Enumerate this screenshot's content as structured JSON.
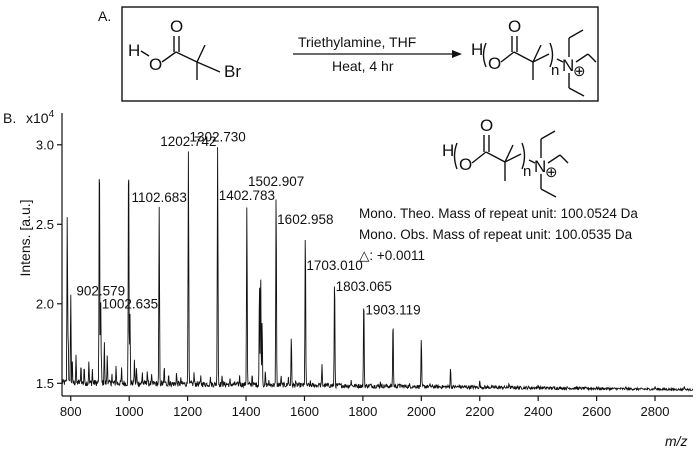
{
  "panel_a": {
    "label": "A.",
    "reagents": "Triethylamine, THF",
    "conditions": "Heat, 4 hr",
    "reactant_atoms": {
      "h": "H",
      "o1": "O",
      "o2": "O",
      "br": "Br"
    },
    "product_atoms": {
      "h": "H",
      "o1": "O",
      "o2": "O",
      "n": "N",
      "sub_n": "n",
      "charge": "⊕"
    }
  },
  "panel_b": {
    "label": "B.",
    "structure_atoms": {
      "h": "H",
      "o1": "O",
      "o2": "O",
      "n": "N",
      "sub_n": "n",
      "charge": "⊕"
    },
    "info_lines": [
      "Mono. Theo. Mass of repeat unit: 100.0524 Da",
      "Mono. Obs. Mass of repeat unit: 100.0535 Da",
      "△: +0.0011"
    ]
  },
  "chart_data": {
    "type": "line",
    "xlabel": "m/z",
    "ylabel": "Intens. [a.u.]",
    "y_multiplier": "x10",
    "y_multiplier_exp": "4",
    "xlim": [
      770,
      2930
    ],
    "ylim": [
      1.42,
      3.2
    ],
    "x_ticks": [
      800,
      1000,
      1200,
      1400,
      1600,
      1800,
      2000,
      2200,
      2400,
      2600,
      2800
    ],
    "x_tick_labels": [
      "800",
      "1000",
      "1200",
      "1400",
      "1600",
      "1800",
      "2000",
      "2200",
      "2400",
      "2600",
      "2800"
    ],
    "y_ticks": [
      1.5,
      2.0,
      2.5,
      3.0
    ],
    "y_tick_labels": [
      "1.5",
      "2.0",
      "2.5",
      "3.0"
    ],
    "baseline": 1.46,
    "peaks": [
      [
        788,
        2.56
      ],
      [
        791,
        1.83
      ],
      [
        800,
        2.06
      ],
      [
        805,
        1.66
      ],
      [
        818,
        1.68
      ],
      [
        835,
        1.62
      ],
      [
        846,
        1.61
      ],
      [
        862,
        1.64
      ],
      [
        874,
        1.59
      ],
      [
        898,
        3.0
      ],
      [
        902.579,
        2.02
      ],
      [
        905,
        1.62
      ],
      [
        915,
        1.76
      ],
      [
        925,
        1.68
      ],
      [
        941,
        1.56
      ],
      [
        955,
        1.61
      ],
      [
        974,
        1.6
      ],
      [
        998,
        3.0
      ],
      [
        1002.635,
        1.94
      ],
      [
        1018,
        1.65
      ],
      [
        1025,
        1.6
      ],
      [
        1045,
        1.57
      ],
      [
        1062,
        1.58
      ],
      [
        1077,
        1.56
      ],
      [
        1102.683,
        2.61
      ],
      [
        1120,
        1.61
      ],
      [
        1135,
        1.56
      ],
      [
        1162,
        1.57
      ],
      [
        1177,
        1.54
      ],
      [
        1202.742,
        2.96
      ],
      [
        1222,
        1.57
      ],
      [
        1245,
        1.55
      ],
      [
        1278,
        1.54
      ],
      [
        1302.73,
        2.99
      ],
      [
        1318,
        1.55
      ],
      [
        1345,
        1.53
      ],
      [
        1378,
        1.55
      ],
      [
        1402.783,
        2.62
      ],
      [
        1421,
        1.56
      ],
      [
        1446,
        2.14
      ],
      [
        1450,
        2.22
      ],
      [
        1455,
        1.9
      ],
      [
        1466,
        1.58
      ],
      [
        1478,
        1.52
      ],
      [
        1502.907,
        2.71
      ],
      [
        1520,
        1.55
      ],
      [
        1545,
        1.54
      ],
      [
        1555,
        1.8
      ],
      [
        1570,
        1.52
      ],
      [
        1602.958,
        2.47
      ],
      [
        1620,
        1.52
      ],
      [
        1650,
        1.5
      ],
      [
        1660,
        1.62
      ],
      [
        1703.01,
        2.18
      ],
      [
        1720,
        1.5
      ],
      [
        1760,
        1.52
      ],
      [
        1803.065,
        2.05
      ],
      [
        1825,
        1.5
      ],
      [
        1860,
        1.51
      ],
      [
        1903.119,
        1.9
      ],
      [
        1925,
        1.5
      ],
      [
        1960,
        1.5
      ],
      [
        2000,
        1.79
      ],
      [
        2030,
        1.5
      ],
      [
        2100,
        1.6
      ],
      [
        2130,
        1.49
      ],
      [
        2200,
        1.52
      ],
      [
        2300,
        1.5
      ],
      [
        2400,
        1.49
      ],
      [
        2500,
        1.48
      ],
      [
        2600,
        1.48
      ],
      [
        2700,
        1.48
      ],
      [
        2800,
        1.48
      ],
      [
        2900,
        1.48
      ]
    ],
    "peak_labels": [
      {
        "text": "902.579",
        "x": 902.579,
        "y": 2.02
      },
      {
        "text": "1002.635",
        "x": 1002.635,
        "y": 1.94
      },
      {
        "text": "1102.683",
        "x": 1102.683,
        "y": 2.61
      },
      {
        "text": "1202.742",
        "x": 1202.742,
        "y": 2.96
      },
      {
        "text": "1302.730",
        "x": 1302.73,
        "y": 2.99
      },
      {
        "text": "1402.783",
        "x": 1402.783,
        "y": 2.62
      },
      {
        "text": "1502.907",
        "x": 1502.907,
        "y": 2.71
      },
      {
        "text": "1602.958",
        "x": 1602.958,
        "y": 2.47
      },
      {
        "text": "1703.010",
        "x": 1703.01,
        "y": 2.18
      },
      {
        "text": "1803.065",
        "x": 1803.065,
        "y": 2.05
      },
      {
        "text": "1903.119",
        "x": 1903.119,
        "y": 1.9
      }
    ]
  }
}
